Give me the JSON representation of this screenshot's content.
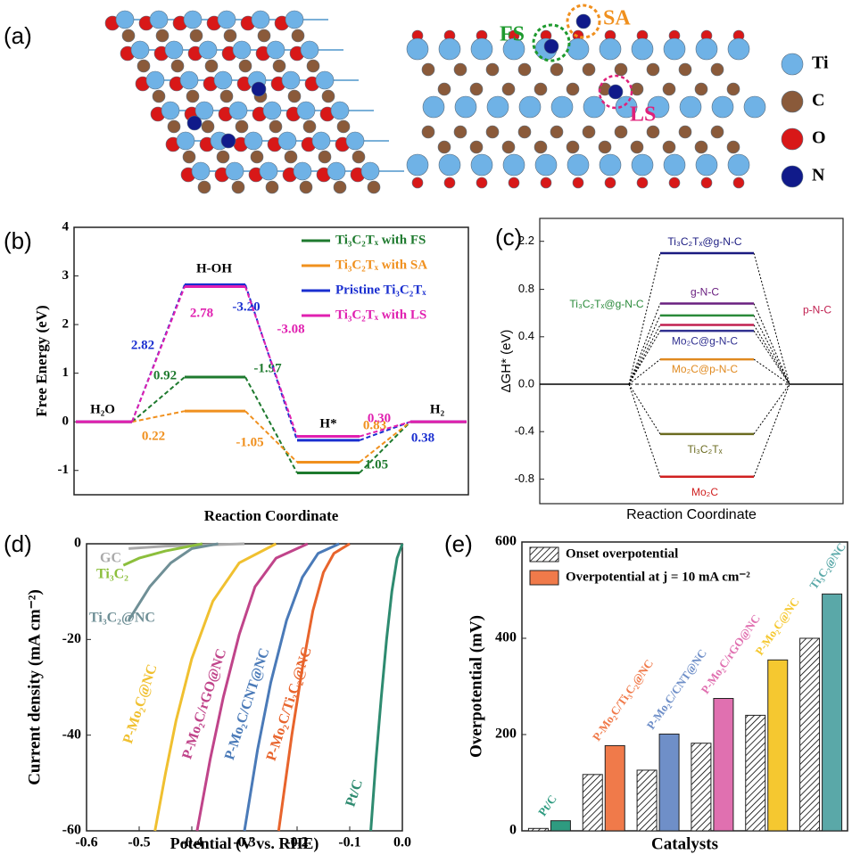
{
  "panel_labels": [
    "(a)",
    "(b)",
    "(c)",
    "(d)",
    "(e)"
  ],
  "structure": {
    "legend": [
      "Ti",
      "C",
      "O",
      "N"
    ],
    "sites": [
      "FS",
      "SA",
      "LS"
    ]
  },
  "chart_data": [
    {
      "type": "energy_diagram",
      "ylabel": "Free Energy (eV)",
      "xlabel": "Reaction Coordinate",
      "states": [
        "H₂O",
        "H-OH",
        "H*",
        "H₂"
      ],
      "ylim": [
        -1.5,
        4
      ],
      "yticks": [
        -1,
        0,
        1,
        2,
        3,
        4
      ],
      "series": [
        {
          "name": "Ti₃C₂Tₓ with FS",
          "color": "#1e7a2e",
          "values": [
            0,
            0.92,
            -1.05,
            0
          ],
          "step_labels": [
            "0.92",
            "-1.97",
            "1.05"
          ]
        },
        {
          "name": "Ti₃C₂Tₓ with SA",
          "color": "#f0901e",
          "values": [
            0,
            0.22,
            -0.83,
            0
          ],
          "step_labels": [
            "0.22",
            "-1.05",
            "0.83"
          ]
        },
        {
          "name": "Pristine Ti₃C₂Tₓ",
          "color": "#1a2fd0",
          "values": [
            0,
            2.82,
            -0.38,
            0
          ],
          "step_labels": [
            "2.82",
            "-3.20",
            "0.38"
          ]
        },
        {
          "name": "Ti₃C₂Tₓ with LS",
          "color": "#e020b0",
          "values": [
            0,
            2.78,
            -0.3,
            0
          ],
          "step_labels": [
            "2.78",
            "-3.08",
            "0.30"
          ]
        }
      ]
    },
    {
      "type": "level_diagram",
      "ylabel": "ΔGH* (eV)",
      "xlabel": "Reaction Coordinate",
      "ylim": [
        -0.95,
        2.3
      ],
      "axis_break": [
        0.9,
        2.0
      ],
      "yticks": [
        -0.8,
        -0.4,
        {
          "value": 0,
          "label": "0.0"
        },
        0.4,
        0.8,
        2.2
      ],
      "levels": [
        {
          "name": "Ti₃C₂Tₓ@g-N-C",
          "color": "#1a1a80",
          "value": 2.1
        },
        {
          "name": "g-N-C",
          "color": "#6a2080",
          "value": 0.68
        },
        {
          "name": "Ti₃C₂Tₓ@g-N-C",
          "color": "#2a8a3a",
          "value": 0.58
        },
        {
          "name": "p-N-C",
          "color": "#c02050",
          "value": 0.5
        },
        {
          "name": "Mo₂C@g-N-C",
          "color": "#303090",
          "value": 0.45
        },
        {
          "name": "Mo₂C@p-N-C",
          "color": "#e08a20",
          "value": 0.21
        },
        {
          "name": "Ti₃C₂Tₓ",
          "color": "#6b6b20",
          "value": -0.42
        },
        {
          "name": "Mo₂C",
          "color": "#d02020",
          "value": -0.78
        }
      ]
    },
    {
      "type": "line",
      "xlabel": "Potential (V vs. RHE)",
      "ylabel": "Current density (mA cm⁻²)",
      "xlim": [
        -0.6,
        0
      ],
      "ylim": [
        -60,
        0
      ],
      "xticks": [
        -0.6,
        -0.5,
        -0.4,
        -0.3,
        -0.2,
        -0.1,
        {
          "value": 0,
          "label": "0.0"
        }
      ],
      "yticks": [
        0,
        -20,
        -40,
        -60
      ],
      "series": [
        {
          "name": "GC",
          "color": "#aaaaaa",
          "x": [
            -0.3,
            -0.45,
            -0.52
          ],
          "values": [
            0,
            -0.5,
            -1
          ]
        },
        {
          "name": "Ti₃C₂",
          "color": "#8cbf3c",
          "x": [
            -0.38,
            -0.45,
            -0.5,
            -0.53
          ],
          "values": [
            0,
            -1.5,
            -3,
            -4.5
          ]
        },
        {
          "name": "Ti₃C₂@NC",
          "color": "#6f8f96",
          "x": [
            -0.35,
            -0.4,
            -0.44,
            -0.48,
            -0.52
          ],
          "values": [
            0,
            -1,
            -4,
            -9,
            -16
          ]
        },
        {
          "name": "P-Mo₂C@NC",
          "color": "#f0c030",
          "x": [
            -0.24,
            -0.31,
            -0.36,
            -0.4,
            -0.43,
            -0.45,
            -0.47
          ],
          "values": [
            0,
            -4,
            -12,
            -24,
            -37,
            -48,
            -60
          ]
        },
        {
          "name": "P-Mo₂C/rGO@NC",
          "color": "#c0448a",
          "x": [
            -0.18,
            -0.24,
            -0.28,
            -0.31,
            -0.34,
            -0.365,
            -0.39
          ],
          "values": [
            0,
            -3,
            -9,
            -19,
            -32,
            -45,
            -60
          ]
        },
        {
          "name": "P-Mo₂C/CNT@NC",
          "color": "#4a7ab8",
          "x": [
            -0.12,
            -0.16,
            -0.19,
            -0.22,
            -0.25,
            -0.275,
            -0.3
          ],
          "values": [
            0,
            -2,
            -7,
            -16,
            -29,
            -43,
            -60
          ]
        },
        {
          "name": "P-Mo₂C/Ti₃C₂@NC",
          "color": "#e8642c",
          "x": [
            -0.1,
            -0.13,
            -0.15,
            -0.17,
            -0.19,
            -0.21,
            -0.235
          ],
          "values": [
            0,
            -2,
            -6,
            -14,
            -26,
            -40,
            -60
          ]
        },
        {
          "name": "Pt/C",
          "color": "#2e8b70",
          "x": [
            0,
            -0.01,
            -0.02,
            -0.03,
            -0.04,
            -0.05,
            -0.06
          ],
          "values": [
            0,
            -3,
            -10,
            -20,
            -32,
            -45,
            -60
          ]
        }
      ]
    },
    {
      "type": "grouped_bar",
      "xlabel": "Catalysts",
      "ylabel": "Overpotential (mV)",
      "ylim": [
        0,
        600
      ],
      "yticks": [
        0,
        200,
        400,
        600
      ],
      "categories": [
        "Pt/C",
        "P-Mo₂C/Ti₃C₂@NC",
        "P-Mo₂C/CNT@NC",
        "P-Mo₂C/rGO@NC",
        "P-Mo₂C@NC",
        "Ti₃C₂@NC"
      ],
      "colors": [
        "#2e9b80",
        "#f07a4a",
        "#6f8fc8",
        "#e070b0",
        "#f5c830",
        "#5aa8a8"
      ],
      "series": [
        {
          "name": "Onset overpotential",
          "hatched": true,
          "values": [
            5,
            117,
            126,
            182,
            240,
            400
          ]
        },
        {
          "name": "Overpotential at j = 10 mA cm⁻²",
          "hatched": false,
          "values": [
            21,
            177,
            201,
            275,
            355,
            492
          ]
        }
      ]
    }
  ]
}
